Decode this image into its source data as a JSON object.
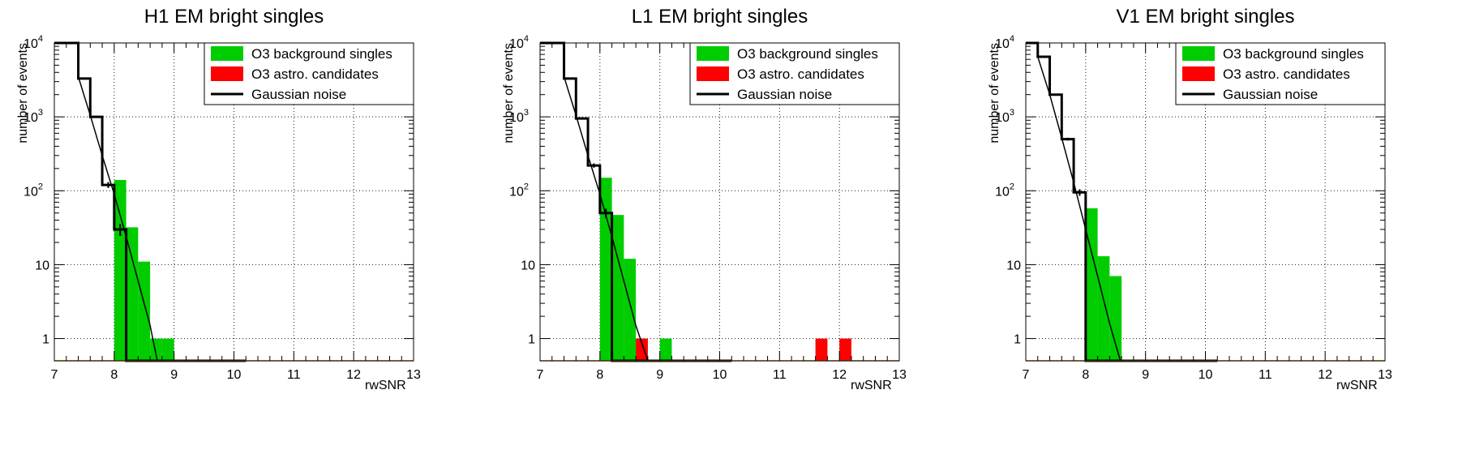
{
  "colors": {
    "background": "#00cc00",
    "candidates": "#ff0000",
    "noise": "#000000",
    "axis": "#000000",
    "baseline": "#b8860b"
  },
  "chart_data": [
    {
      "type": "bar",
      "title": "H1 EM bright singles",
      "xlabel": "rwSNR",
      "ylabel": "number of events",
      "xlim": [
        7,
        13
      ],
      "ylim": [
        0.5,
        10000
      ],
      "y_scale": "log",
      "grid": true,
      "legend_position": "top-right",
      "x_ticks": [
        "7",
        "8",
        "9",
        "10",
        "11",
        "12",
        "13"
      ],
      "y_ticks": [
        {
          "base": "1",
          "exp": ""
        },
        {
          "base": "10",
          "exp": ""
        },
        {
          "base": "10",
          "exp": "2"
        },
        {
          "base": "10",
          "exp": "3"
        },
        {
          "base": "10",
          "exp": "4"
        }
      ],
      "legend": [
        {
          "label": "O3 background singles",
          "kind": "box",
          "color": "#00cc00"
        },
        {
          "label": "O3 astro. candidates",
          "kind": "box",
          "color": "#ff0000"
        },
        {
          "label": "Gaussian noise",
          "kind": "line",
          "color": "#000000"
        }
      ],
      "bin_width": 0.2,
      "series": [
        {
          "name": "O3 background singles",
          "style": "filled",
          "bins": [
            [
              8.0,
              140
            ],
            [
              8.2,
              32
            ],
            [
              8.4,
              11
            ],
            [
              8.6,
              1
            ],
            [
              8.8,
              1
            ]
          ]
        },
        {
          "name": "O3 astro. candidates",
          "style": "filled",
          "bins": []
        },
        {
          "name": "Gaussian noise",
          "style": "step",
          "bins": [
            [
              7.0,
              10000
            ],
            [
              7.2,
              10000
            ],
            [
              7.4,
              3300
            ],
            [
              7.6,
              1000
            ],
            [
              7.8,
              120
            ],
            [
              8.0,
              30
            ],
            [
              8.2,
              0.5
            ],
            [
              8.4,
              0.5
            ],
            [
              8.6,
              0.5
            ],
            [
              8.8,
              0.5
            ],
            [
              9.0,
              0.5
            ],
            [
              9.2,
              0.5
            ],
            [
              9.4,
              0.5
            ],
            [
              9.6,
              0.5
            ],
            [
              9.8,
              0.5
            ],
            [
              10.0,
              0.5
            ]
          ]
        }
      ],
      "noise_fit": [
        [
          7.4,
          3500
        ],
        [
          7.6,
          1050
        ],
        [
          7.8,
          300
        ],
        [
          8.0,
          90
        ],
        [
          8.2,
          24
        ],
        [
          8.4,
          6
        ],
        [
          8.6,
          1.5
        ],
        [
          8.72,
          0.5
        ]
      ]
    },
    {
      "type": "bar",
      "title": "L1 EM bright singles",
      "xlabel": "rwSNR",
      "ylabel": "number of events",
      "xlim": [
        7,
        13
      ],
      "ylim": [
        0.5,
        10000
      ],
      "y_scale": "log",
      "grid": true,
      "legend_position": "top-right",
      "x_ticks": [
        "7",
        "8",
        "9",
        "10",
        "11",
        "12",
        "13"
      ],
      "y_ticks": [
        {
          "base": "1",
          "exp": ""
        },
        {
          "base": "10",
          "exp": ""
        },
        {
          "base": "10",
          "exp": "2"
        },
        {
          "base": "10",
          "exp": "3"
        },
        {
          "base": "10",
          "exp": "4"
        }
      ],
      "legend": [
        {
          "label": "O3 background singles",
          "kind": "box",
          "color": "#00cc00"
        },
        {
          "label": "O3 astro. candidates",
          "kind": "box",
          "color": "#ff0000"
        },
        {
          "label": "Gaussian noise",
          "kind": "line",
          "color": "#000000"
        }
      ],
      "bin_width": 0.2,
      "series": [
        {
          "name": "O3 background singles",
          "style": "filled",
          "bins": [
            [
              8.0,
              150
            ],
            [
              8.2,
              47
            ],
            [
              8.4,
              12
            ],
            [
              8.6,
              1
            ],
            [
              9.0,
              1
            ]
          ]
        },
        {
          "name": "O3 astro. candidates",
          "style": "filled",
          "bins": [
            [
              8.6,
              1
            ],
            [
              11.6,
              1
            ],
            [
              12.0,
              1
            ]
          ]
        },
        {
          "name": "Gaussian noise",
          "style": "step",
          "bins": [
            [
              7.0,
              10000
            ],
            [
              7.2,
              10000
            ],
            [
              7.4,
              3300
            ],
            [
              7.6,
              950
            ],
            [
              7.8,
              220
            ],
            [
              8.0,
              50
            ],
            [
              8.2,
              0.5
            ],
            [
              8.4,
              0.5
            ],
            [
              8.6,
              0.5
            ],
            [
              8.8,
              0.5
            ],
            [
              9.0,
              0.5
            ],
            [
              9.2,
              0.5
            ],
            [
              9.4,
              0.5
            ],
            [
              9.6,
              0.5
            ],
            [
              9.8,
              0.5
            ],
            [
              10.0,
              0.5
            ]
          ]
        }
      ],
      "noise_fit": [
        [
          7.4,
          3500
        ],
        [
          7.6,
          1050
        ],
        [
          7.8,
          300
        ],
        [
          8.0,
          90
        ],
        [
          8.2,
          24
        ],
        [
          8.4,
          6
        ],
        [
          8.6,
          1.5
        ],
        [
          8.8,
          0.5
        ]
      ]
    },
    {
      "type": "bar",
      "title": "V1 EM bright singles",
      "xlabel": "rwSNR",
      "ylabel": "number of events",
      "xlim": [
        7,
        13
      ],
      "ylim": [
        0.5,
        10000
      ],
      "y_scale": "log",
      "grid": true,
      "legend_position": "top-right",
      "x_ticks": [
        "7",
        "8",
        "9",
        "10",
        "11",
        "12",
        "13"
      ],
      "y_ticks": [
        {
          "base": "1",
          "exp": ""
        },
        {
          "base": "10",
          "exp": ""
        },
        {
          "base": "10",
          "exp": "2"
        },
        {
          "base": "10",
          "exp": "3"
        },
        {
          "base": "10",
          "exp": "4"
        }
      ],
      "legend": [
        {
          "label": "O3 background singles",
          "kind": "box",
          "color": "#00cc00"
        },
        {
          "label": "O3 astro. candidates",
          "kind": "box",
          "color": "#ff0000"
        },
        {
          "label": "Gaussian noise",
          "kind": "line",
          "color": "#000000"
        }
      ],
      "bin_width": 0.2,
      "series": [
        {
          "name": "O3 background singles",
          "style": "filled",
          "bins": [
            [
              8.0,
              58
            ],
            [
              8.2,
              13
            ],
            [
              8.4,
              7
            ]
          ]
        },
        {
          "name": "O3 astro. candidates",
          "style": "filled",
          "bins": []
        },
        {
          "name": "Gaussian noise",
          "style": "step",
          "bins": [
            [
              7.0,
              10000
            ],
            [
              7.2,
              6500
            ],
            [
              7.4,
              2000
            ],
            [
              7.6,
              500
            ],
            [
              7.8,
              95
            ],
            [
              8.0,
              0.5
            ],
            [
              8.2,
              0.5
            ],
            [
              8.4,
              0.5
            ],
            [
              8.6,
              0.5
            ],
            [
              8.8,
              0.5
            ],
            [
              9.0,
              0.5
            ],
            [
              9.2,
              0.5
            ],
            [
              9.4,
              0.5
            ],
            [
              9.6,
              0.5
            ],
            [
              9.8,
              0.5
            ],
            [
              10.0,
              0.5
            ]
          ]
        }
      ],
      "noise_fit": [
        [
          7.2,
          6500
        ],
        [
          7.4,
          2000
        ],
        [
          7.6,
          520
        ],
        [
          7.8,
          130
        ],
        [
          8.0,
          30
        ],
        [
          8.2,
          7
        ],
        [
          8.4,
          1.6
        ],
        [
          8.58,
          0.5
        ]
      ]
    }
  ]
}
